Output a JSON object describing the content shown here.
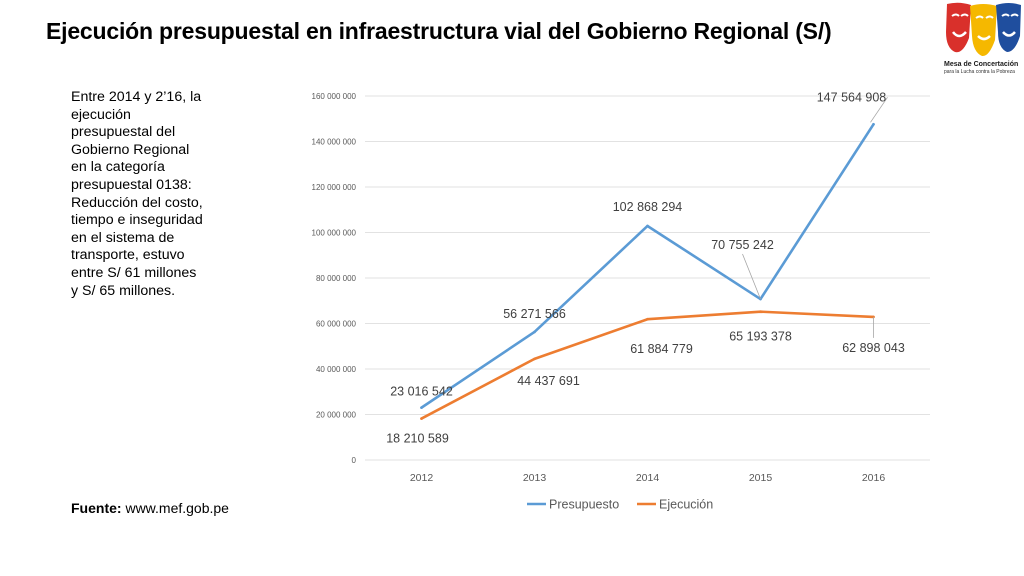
{
  "title": "Ejecución presupuestal en infraestructura vial del Gobierno Regional (S/)",
  "logo": {
    "org_name": "Mesa de Concertación",
    "org_tagline": "para la Lucha contra la Pobreza",
    "colors": [
      "#d9302b",
      "#f5b800",
      "#1f4e9e"
    ]
  },
  "description": "Entre 2014 y 2’16, la ejecución presupuestal del Gobierno Regional en la categoría presupuestal 0138: Reducción del costo, tiempo e inseguridad en el sistema de transporte, estuvo entre S/ 61 millones y S/ 65 millones.",
  "source": {
    "label": "Fuente:",
    "value": "www.mef.gob.pe"
  },
  "chart_data": {
    "type": "line",
    "categories": [
      "2012",
      "2013",
      "2014",
      "2015",
      "2016"
    ],
    "ylim": [
      0,
      160000000
    ],
    "yticks": [
      0,
      20000000,
      40000000,
      60000000,
      80000000,
      100000000,
      120000000,
      140000000,
      160000000
    ],
    "ytick_labels": [
      "0",
      "20 000 000",
      "40 000 000",
      "60 000 000",
      "80 000 000",
      "100 000 000",
      "120 000 000",
      "140 000 000",
      "160 000 000"
    ],
    "grid": true,
    "legend": "bottom",
    "series": [
      {
        "name": "Presupuesto",
        "color": "#5b9bd5",
        "values": [
          23016542,
          56271566,
          102868294,
          70755242,
          147564908
        ],
        "labels": [
          "23 016 542",
          "56 271 566",
          "102 868 294",
          "70 755 242",
          "147 564 908"
        ]
      },
      {
        "name": "Ejecución",
        "color": "#ed7d31",
        "values": [
          18210589,
          44437691,
          61884779,
          65193378,
          62898043
        ],
        "labels": [
          "18 210 589",
          "44 437 691",
          "61 884 779",
          "65 193 378",
          "62 898 043"
        ]
      }
    ]
  }
}
